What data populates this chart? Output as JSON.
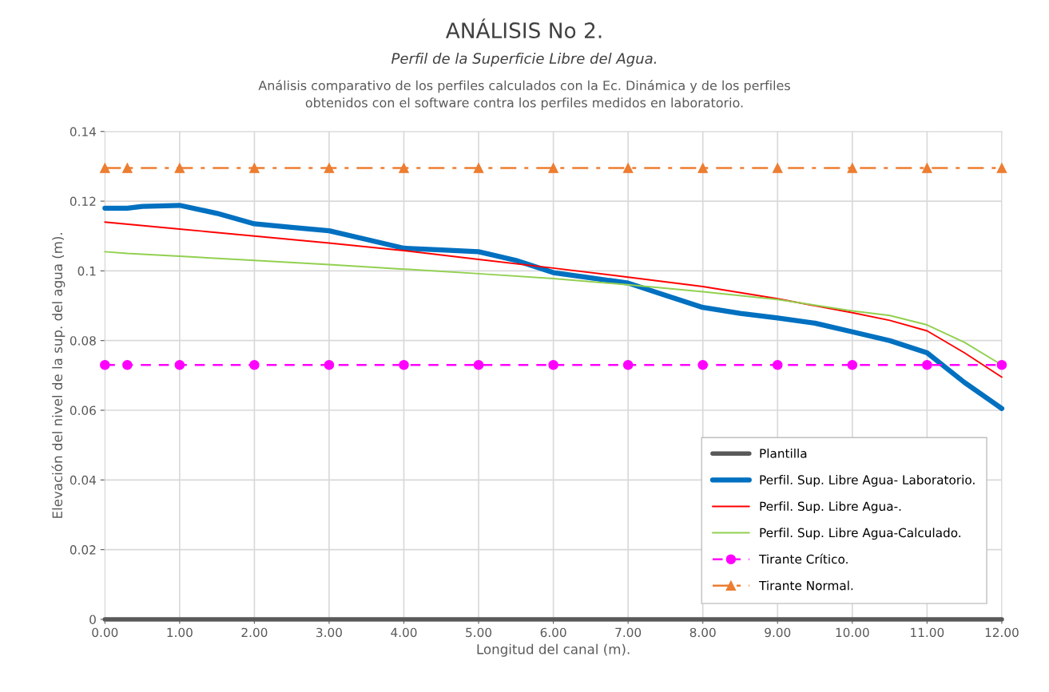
{
  "chart_data": {
    "type": "line",
    "title": "ANÁLISIS No 2.",
    "subtitle": "Perfil de la Superficie Libre del Agua.",
    "annotations": [
      "Análisis comparativo de los perfiles calculados con la Ec. Dinámica y de los perfiles\nobtenidos con el software contra los perfiles medidos en laboratorio."
    ],
    "xlabel": "Longitud del canal (m).",
    "ylabel": "Elevación del nivel de la sup. del agua (m).",
    "xlim": [
      0,
      12
    ],
    "ylim": [
      0,
      0.14
    ],
    "xticks": [
      {
        "value": 0,
        "label": "0.00"
      },
      {
        "value": 1,
        "label": "1.00"
      },
      {
        "value": 2,
        "label": "2.00"
      },
      {
        "value": 3,
        "label": "3.00"
      },
      {
        "value": 4,
        "label": "4.00"
      },
      {
        "value": 5,
        "label": "5.00"
      },
      {
        "value": 6,
        "label": "6.00"
      },
      {
        "value": 7,
        "label": "7.00"
      },
      {
        "value": 8,
        "label": "8.00"
      },
      {
        "value": 9,
        "label": "9.00"
      },
      {
        "value": 10,
        "label": "10.00"
      },
      {
        "value": 11,
        "label": "11.00"
      },
      {
        "value": 12,
        "label": "12.00"
      }
    ],
    "yticks": [
      0,
      0.02,
      0.04,
      0.06,
      0.08,
      0.1,
      0.12,
      0.14
    ],
    "grid": true,
    "legend": "bottom right",
    "series": [
      {
        "name": "Plantilla",
        "color": "#595959",
        "x": [
          0,
          12
        ],
        "values": [
          0,
          0
        ],
        "marker": "none",
        "line_style": "solid"
      },
      {
        "name": "Perfil. Sup. Libre Agua- Laboratorio.",
        "color": "#0070c0",
        "x": [
          0,
          0.3,
          0.5,
          1,
          1.5,
          2,
          2.5,
          3,
          3.5,
          4,
          4.5,
          5,
          5.5,
          6,
          6.5,
          7,
          7.5,
          8,
          8.5,
          9,
          9.5,
          10,
          10.5,
          11,
          11.5,
          12
        ],
        "values": [
          0.118,
          0.118,
          0.1185,
          0.1188,
          0.1165,
          0.1135,
          0.1125,
          0.1115,
          0.109,
          0.1065,
          0.106,
          0.1055,
          0.103,
          0.0995,
          0.098,
          0.0965,
          0.093,
          0.0895,
          0.0878,
          0.0865,
          0.085,
          0.0825,
          0.08,
          0.0765,
          0.068,
          0.0605
        ],
        "marker": "none",
        "line_style": "solid"
      },
      {
        "name": "Perfil. Sup. Libre Agua-.",
        "color": "#ff0000",
        "x": [
          0,
          1,
          2,
          3,
          4,
          5,
          6,
          7,
          8,
          9,
          10,
          10.5,
          11,
          11.5,
          12
        ],
        "values": [
          0.114,
          0.112,
          0.11,
          0.108,
          0.1058,
          0.1033,
          0.1008,
          0.0982,
          0.0955,
          0.092,
          0.088,
          0.0858,
          0.0828,
          0.0765,
          0.0695
        ],
        "marker": "none",
        "line_style": "solid"
      },
      {
        "name": "Perfil. Sup. Libre Agua-Calculado.",
        "color": "#92d050",
        "x": [
          0,
          0.3,
          1,
          2,
          3,
          4,
          5,
          6,
          7,
          8,
          9,
          10,
          10.5,
          11,
          11.5,
          12
        ],
        "values": [
          0.1055,
          0.105,
          0.1042,
          0.103,
          0.1018,
          0.1005,
          0.0992,
          0.0978,
          0.096,
          0.094,
          0.0918,
          0.0885,
          0.0872,
          0.0845,
          0.0795,
          0.073
        ],
        "marker": "none",
        "line_style": "solid"
      },
      {
        "name": "Tirante Crítico.",
        "color": "#ff00ff",
        "x": [
          0,
          0.3,
          1,
          2,
          3,
          4,
          5,
          6,
          7,
          8,
          9,
          10,
          11,
          12
        ],
        "values": [
          0.073,
          0.073,
          0.073,
          0.073,
          0.073,
          0.073,
          0.073,
          0.073,
          0.073,
          0.073,
          0.073,
          0.073,
          0.073,
          0.073
        ],
        "marker": "circle",
        "line_style": "dashed"
      },
      {
        "name": "Tirante Normal.",
        "color": "#ed7d31",
        "x": [
          0,
          0.3,
          1,
          2,
          3,
          4,
          5,
          6,
          7,
          8,
          9,
          10,
          11,
          12
        ],
        "values": [
          0.1295,
          0.1295,
          0.1295,
          0.1295,
          0.1295,
          0.1295,
          0.1295,
          0.1295,
          0.1295,
          0.1295,
          0.1295,
          0.1295,
          0.1295,
          0.1295
        ],
        "marker": "triangle",
        "line_style": "dashdot"
      }
    ]
  }
}
